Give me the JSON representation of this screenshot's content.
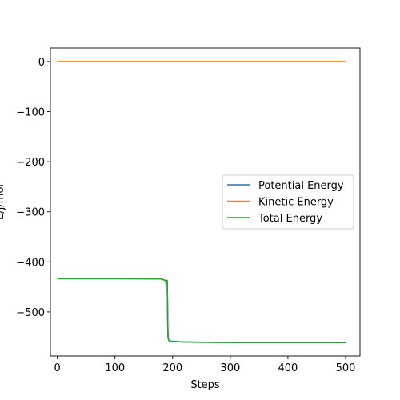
{
  "chart_data": {
    "type": "line",
    "title": "",
    "xlabel": "Steps",
    "ylabel": "E/J/mol",
    "xlim": [
      -12,
      525
    ],
    "ylim": [
      -588,
      27
    ],
    "xticks": [
      0,
      100,
      200,
      300,
      400,
      500
    ],
    "xtick_labels": [
      "0",
      "100",
      "200",
      "300",
      "400",
      "500"
    ],
    "yticks": [
      0,
      -100,
      -200,
      -300,
      -400,
      -500
    ],
    "ytick_labels": [
      "0",
      "−100",
      "−200",
      "−300",
      "−400",
      "−500"
    ],
    "grid": false,
    "legend_position": "center-right",
    "series": [
      {
        "name": "Potential Energy",
        "color": "#1f77b4",
        "x": [
          0,
          50,
          100,
          150,
          180,
          185,
          188,
          189,
          190,
          190.5,
          191,
          191.5,
          192,
          193,
          195,
          200,
          220,
          250,
          300,
          400,
          500
        ],
        "y": [
          -433.5,
          -433.5,
          -433.6,
          -433.7,
          -434,
          -436,
          -438,
          -447,
          -440,
          -437,
          -470,
          -520,
          -550,
          -556,
          -558,
          -559,
          -560,
          -560.5,
          -561,
          -561,
          -561
        ]
      },
      {
        "name": "Kinetic Energy",
        "color": "#ff7f0e",
        "x": [
          0,
          100,
          200,
          300,
          400,
          500
        ],
        "y": [
          0,
          0,
          0,
          0,
          0,
          0
        ]
      },
      {
        "name": "Total Energy",
        "color": "#2ca02c",
        "x": [
          0,
          50,
          100,
          150,
          180,
          185,
          188,
          189,
          190,
          190.5,
          191,
          191.5,
          192,
          193,
          195,
          200,
          220,
          250,
          300,
          400,
          500
        ],
        "y": [
          -433.5,
          -433.5,
          -433.6,
          -433.7,
          -434,
          -436,
          -438,
          -447,
          -440,
          -437,
          -470,
          -520,
          -550,
          -556,
          -558,
          -559,
          -560,
          -560.5,
          -561,
          -561,
          -561
        ]
      }
    ]
  }
}
